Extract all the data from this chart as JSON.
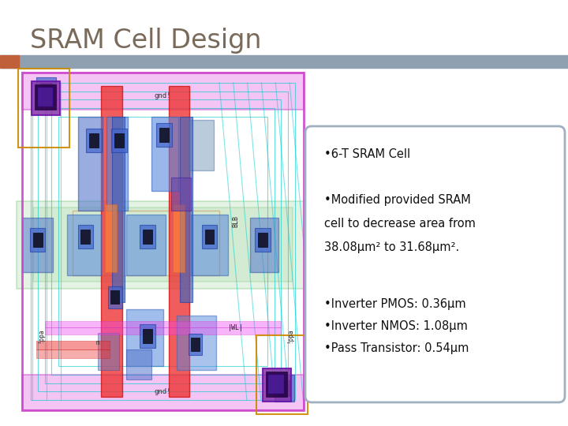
{
  "title": "SRAM Cell Design",
  "title_color": "#7a6a5a",
  "title_fontsize": 24,
  "bg_color": "#ffffff",
  "header_bar_color": "#8fa0b0",
  "header_bar_left_color": "#c0603a",
  "bullet_box_border_color": "#a0b0c0",
  "bullet1": "•6-T SRAM Cell",
  "bullet2_line1": "•Modified provided SRAM",
  "bullet2_line2": "cell to decrease area from",
  "bullet2_line3": "38.08μm² to 31.68μm².",
  "bullet3": "•Inverter PMOS: 0.36μm",
  "bullet4": "•Inverter NMOS: 1.08μm",
  "bullet5": "•Pass Transistor: 0.54μm"
}
